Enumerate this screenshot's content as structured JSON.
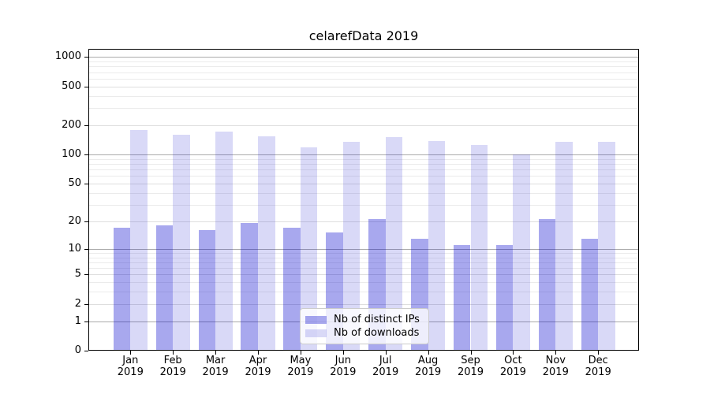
{
  "chart_data": {
    "type": "bar",
    "title": "celarefData 2019",
    "categories": [
      "Jan 2019",
      "Feb 2019",
      "Mar 2019",
      "Apr 2019",
      "May 2019",
      "Jun 2019",
      "Jul 2019",
      "Aug 2019",
      "Sep 2019",
      "Oct 2019",
      "Nov 2019",
      "Dec 2019"
    ],
    "series": [
      {
        "name": "Nb of distinct IPs",
        "color": "rgba(0,0,204,0.34)",
        "values": [
          17,
          18,
          16,
          19,
          17,
          15,
          21,
          13,
          11,
          11,
          21,
          13
        ]
      },
      {
        "name": "Nb of downloads",
        "color": "rgba(0,0,204,0.15)",
        "values": [
          178,
          161,
          173,
          154,
          118,
          135,
          152,
          138,
          126,
          100,
          134,
          134
        ]
      }
    ],
    "xlabel": "",
    "ylabel": "",
    "y_scale": "log1p",
    "y_major_ticks": [
      0,
      1,
      2,
      5,
      10,
      20,
      50,
      100,
      200,
      500,
      1000
    ],
    "y_minor_gridlines": [
      3,
      4,
      6,
      7,
      8,
      9,
      30,
      40,
      60,
      70,
      80,
      90,
      300,
      400,
      600,
      700,
      800,
      900
    ],
    "y_pow10_gridlines": [
      1,
      10,
      100,
      1000
    ],
    "ylim": [
      0,
      1190
    ],
    "grid": true,
    "legend_position": "lower center",
    "colors": {
      "grid_pow10": "#ababab",
      "grid_major": "#dedede",
      "grid_minor": "#ebebeb",
      "axis": "#000000",
      "background": "#ffffff"
    }
  }
}
